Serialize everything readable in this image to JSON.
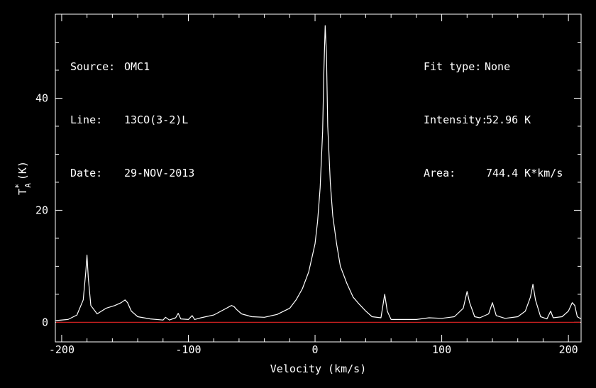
{
  "info_left": [
    {
      "key": "Source:",
      "value": "OMC1"
    },
    {
      "key": "Line:",
      "value": "13CO(3-2)L"
    },
    {
      "key": "Date:",
      "value": "29-NOV-2013"
    }
  ],
  "info_right": [
    {
      "key": "Fit type:",
      "value": "None"
    },
    {
      "key": "Intensity:",
      "value": "52.96 K"
    },
    {
      "key": "Area:",
      "value": "744.4 K*km/s"
    }
  ],
  "colors": {
    "background": "#000000",
    "spectrum": "#ffffff",
    "baseline": "#cc2020",
    "axes": "#ffffff"
  },
  "chart_data": {
    "type": "line",
    "title": "",
    "xlabel": "Velocity (km/s)",
    "ylabel": "T*A (K)",
    "ylabel_main": "T",
    "ylabel_sup": "*",
    "ylabel_sub": "A",
    "ylabel_unit": "(K)",
    "xlim": [
      -205,
      210
    ],
    "ylim": [
      -3.5,
      55
    ],
    "xticks": [
      -200,
      -100,
      0,
      100,
      200
    ],
    "yticks": [
      0,
      20,
      40
    ],
    "baseline": 0,
    "grid": false,
    "series": [
      {
        "x": [
          -205,
          -195,
          -188,
          -183,
          -181,
          -180,
          -179,
          -177,
          -172,
          -165,
          -158,
          -153,
          -150,
          -148,
          -145,
          -140,
          -130,
          -120,
          -118,
          -115,
          -110,
          -108,
          -106,
          -100,
          -97,
          -95,
          -90,
          -80,
          -70,
          -66,
          -64,
          -62,
          -58,
          -50,
          -40,
          -30,
          -20,
          -15,
          -10,
          -5,
          0,
          2,
          4,
          6,
          7,
          8,
          9,
          10,
          12,
          14,
          17,
          20,
          25,
          30,
          35,
          40,
          45,
          52,
          55,
          57,
          60,
          70,
          80,
          90,
          100,
          110,
          117,
          120,
          122,
          126,
          130,
          137,
          140,
          143,
          150,
          160,
          166,
          170,
          172,
          174,
          178,
          183,
          186,
          188,
          195,
          200,
          203,
          205,
          207,
          210
        ],
        "y": [
          0.3,
          0.5,
          1.3,
          4,
          9,
          12,
          8,
          3,
          1.5,
          2.5,
          3,
          3.5,
          4,
          3.5,
          2,
          1,
          0.6,
          0.4,
          0.9,
          0.4,
          0.8,
          1.6,
          0.6,
          0.5,
          1.2,
          0.5,
          0.8,
          1.3,
          2.5,
          3,
          2.8,
          2.3,
          1.5,
          1,
          0.9,
          1.4,
          2.5,
          4,
          6,
          9,
          14,
          18,
          24,
          34,
          45,
          52.96,
          48,
          35,
          25,
          19,
          14,
          10,
          7,
          4.5,
          3.2,
          2,
          1,
          0.8,
          5,
          2,
          0.5,
          0.5,
          0.5,
          0.8,
          0.7,
          1,
          2.5,
          5.5,
          3.5,
          1,
          0.8,
          1.5,
          3.5,
          1.2,
          0.7,
          1,
          2,
          4.5,
          6.8,
          4,
          1,
          0.6,
          2,
          0.8,
          1,
          2,
          3.5,
          3,
          1,
          0.6
        ]
      }
    ]
  }
}
